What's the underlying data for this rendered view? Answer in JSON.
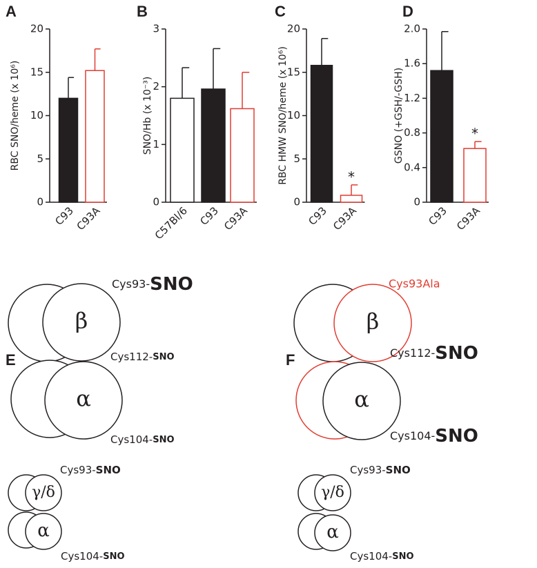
{
  "chart_data": [
    {
      "type": "bar",
      "panel": "A",
      "ylabel": "RBC SNO/heme (x 10⁶)",
      "categories": [
        "C93",
        "C93A"
      ],
      "values": [
        12.0,
        15.2
      ],
      "errors": [
        2.4,
        2.5
      ],
      "fill_colors": [
        "#231f20",
        "#ffffff"
      ],
      "edge_colors": [
        "#231f20",
        "#e03c31"
      ],
      "ylim": [
        0,
        20
      ],
      "yticks": [
        0,
        5,
        10,
        15,
        20
      ]
    },
    {
      "type": "bar",
      "panel": "B",
      "ylabel": "SNO/Hb (x 10⁻³)",
      "categories": [
        "C57Bl/6",
        "C93",
        "C93A"
      ],
      "values": [
        1.8,
        1.96,
        1.62
      ],
      "errors": [
        0.53,
        0.7,
        0.63
      ],
      "fill_colors": [
        "#ffffff",
        "#231f20",
        "#ffffff"
      ],
      "edge_colors": [
        "#231f20",
        "#231f20",
        "#e03c31"
      ],
      "ylim": [
        0,
        3
      ],
      "yticks": [
        0,
        1,
        2,
        3
      ]
    },
    {
      "type": "bar",
      "panel": "C",
      "ylabel": "RBC HMW SNO/heme (x 10⁶)",
      "categories": [
        "C93",
        "C93A"
      ],
      "values": [
        15.8,
        0.8
      ],
      "errors": [
        3.1,
        1.2
      ],
      "fill_colors": [
        "#231f20",
        "#ffffff"
      ],
      "edge_colors": [
        "#231f20",
        "#e03c31"
      ],
      "annotations": [
        null,
        "*"
      ],
      "ylim": [
        0,
        20
      ],
      "yticks": [
        0,
        5,
        10,
        15,
        20
      ]
    },
    {
      "type": "bar",
      "panel": "D",
      "ylabel": "GSNO (+GSH/-GSH)",
      "categories": [
        "C93",
        "C93A"
      ],
      "values": [
        1.52,
        0.62
      ],
      "errors": [
        0.45,
        0.08
      ],
      "fill_colors": [
        "#231f20",
        "#ffffff"
      ],
      "edge_colors": [
        "#231f20",
        "#e03c31"
      ],
      "annotations": [
        null,
        "*"
      ],
      "ylim": [
        0,
        2
      ],
      "yticks": [
        0,
        0.4,
        0.8,
        1.2,
        1.6,
        {
          "value": 2,
          "label": "2.0"
        }
      ]
    }
  ],
  "diagrams": [
    {
      "label": "E",
      "top": [
        "Cys93-",
        "SNO"
      ],
      "beta": "β",
      "middle": [
        "Cys112-",
        "SNO"
      ],
      "alpha": "α",
      "bottom": [
        "Cys104-",
        "SNO"
      ],
      "small_top": [
        "Cys93-",
        "SNO"
      ],
      "gamma": "γ/δ",
      "small_alpha": "α",
      "small_bottom": [
        "Cys104-",
        "SNO"
      ]
    },
    {
      "label": "F",
      "top": "Cys93Ala",
      "beta": "β",
      "middle": [
        "Cys112-",
        "SNO"
      ],
      "alpha": "α",
      "bottom": [
        "Cys104-",
        "SNO"
      ],
      "small_top": [
        "Cys93-",
        "SNO"
      ],
      "gamma": "γ/δ",
      "small_alpha": "α",
      "small_bottom": [
        "Cys104-",
        "SNO"
      ]
    }
  ]
}
